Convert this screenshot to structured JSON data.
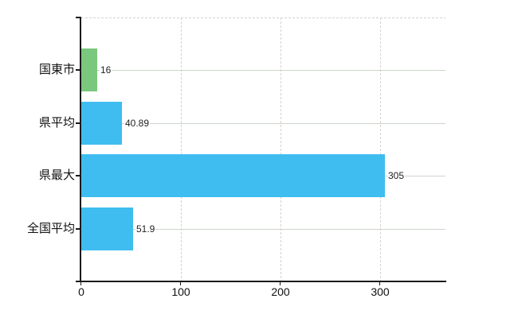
{
  "chart_data": {
    "type": "bar",
    "orientation": "horizontal",
    "title": "",
    "xlabel": "",
    "ylabel": "",
    "categories": [
      "国東市",
      "県平均",
      "県最大",
      "全国平均"
    ],
    "values": [
      16,
      40.89,
      305,
      51.9
    ],
    "value_labels": [
      "16",
      "40.89",
      "305",
      "51.9"
    ],
    "series": [
      {
        "name": "",
        "values": [
          16,
          40.89,
          305,
          51.9
        ]
      }
    ],
    "bar_colors": [
      "#7ac87e",
      "#3fbdf0",
      "#3fbdf0",
      "#3fbdf0"
    ],
    "xlim": [
      0,
      366
    ],
    "x_ticks": [
      0,
      100,
      200,
      300
    ],
    "x_tick_labels": [
      "0",
      "100",
      "200",
      "300"
    ],
    "grid": "on",
    "legend": "none",
    "styles": {
      "background": "#ffffff",
      "axis_color": "#1a1a1a",
      "h_gridline_color": "#ccd6cc",
      "v_gridline_color": "#d6d1cd",
      "top_border_color": "#d6d1cd",
      "category_label_color": "#111111",
      "tick_label_color": "#111111",
      "value_label_color": "#222222"
    }
  }
}
